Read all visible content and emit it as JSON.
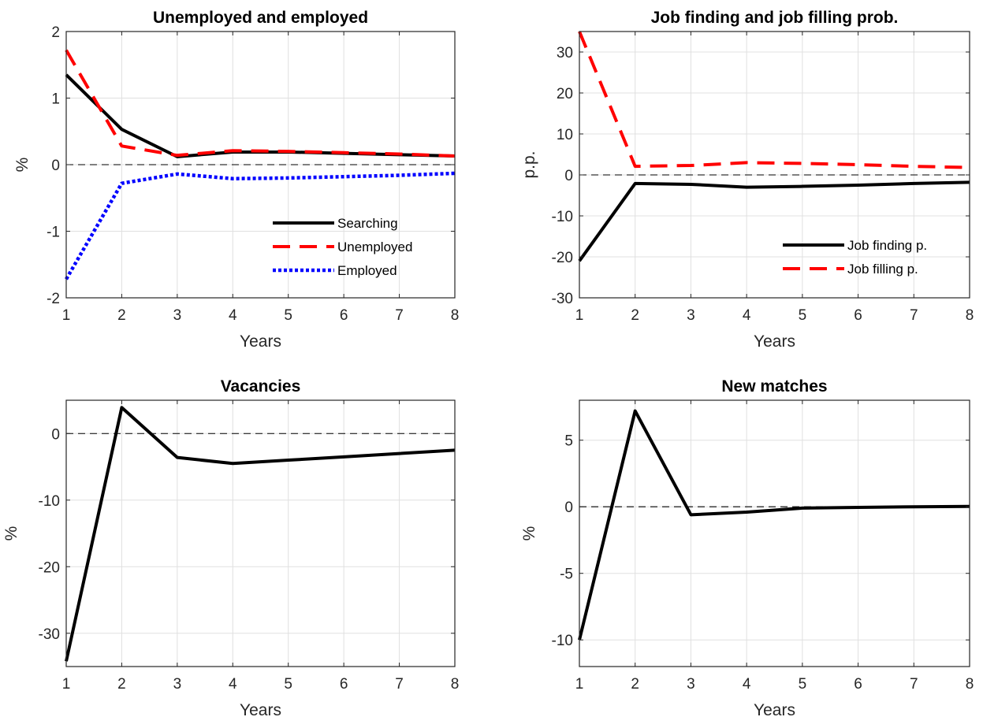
{
  "chart_data": [
    {
      "type": "line",
      "title": "Unemployed and employed",
      "xlabel": "Years",
      "ylabel": "%",
      "xlim": [
        1,
        8
      ],
      "ylim": [
        -2,
        2
      ],
      "xticks": [
        1,
        2,
        3,
        4,
        5,
        6,
        7,
        8
      ],
      "yticks": [
        -2,
        -1,
        0,
        1,
        2
      ],
      "grid": true,
      "zero_line": true,
      "legend": {
        "placement": "bottom-right"
      },
      "series": [
        {
          "name": "Searching",
          "color": "#000000",
          "style": "solid",
          "x": [
            1,
            2,
            3,
            4,
            5,
            6,
            7,
            8
          ],
          "y": [
            1.35,
            0.53,
            0.12,
            0.19,
            0.19,
            0.17,
            0.15,
            0.13
          ]
        },
        {
          "name": "Unemployed",
          "color": "#ff0000",
          "style": "dashed",
          "x": [
            1,
            2,
            3,
            4,
            5,
            6,
            7,
            8
          ],
          "y": [
            1.72,
            0.28,
            0.14,
            0.21,
            0.2,
            0.18,
            0.16,
            0.13
          ]
        },
        {
          "name": "Employed",
          "color": "#0000ff",
          "style": "dotted",
          "x": [
            1,
            2,
            3,
            4,
            5,
            6,
            7,
            8
          ],
          "y": [
            -1.72,
            -0.28,
            -0.14,
            -0.21,
            -0.2,
            -0.18,
            -0.16,
            -0.13
          ]
        }
      ]
    },
    {
      "type": "line",
      "title": "Job finding and job filling prob.",
      "xlabel": "Years",
      "ylabel": "p.p.",
      "xlim": [
        1,
        8
      ],
      "ylim": [
        -30,
        35
      ],
      "xticks": [
        1,
        2,
        3,
        4,
        5,
        6,
        7,
        8
      ],
      "yticks": [
        -30,
        -20,
        -10,
        0,
        10,
        20,
        30
      ],
      "grid": true,
      "zero_line": true,
      "legend": {
        "placement": "bottom-right"
      },
      "series": [
        {
          "name": "Job finding p.",
          "color": "#000000",
          "style": "solid",
          "x": [
            1,
            2,
            3,
            4,
            5,
            6,
            7,
            8
          ],
          "y": [
            -21,
            -2.1,
            -2.3,
            -3.0,
            -2.8,
            -2.5,
            -2.1,
            -1.8
          ]
        },
        {
          "name": "Job filling p.",
          "color": "#ff0000",
          "style": "dashed",
          "x": [
            1,
            2,
            3,
            4,
            5,
            6,
            7,
            8
          ],
          "y": [
            35,
            2.1,
            2.3,
            3.0,
            2.8,
            2.5,
            2.1,
            1.8
          ]
        }
      ]
    },
    {
      "type": "line",
      "title": "Vacancies",
      "xlabel": "Years",
      "ylabel": "%",
      "xlim": [
        1,
        8
      ],
      "ylim": [
        -35,
        5
      ],
      "xticks": [
        1,
        2,
        3,
        4,
        5,
        6,
        7,
        8
      ],
      "yticks": [
        -30,
        -20,
        -10,
        0
      ],
      "grid": true,
      "zero_line": true,
      "series": [
        {
          "color": "#000000",
          "style": "solid",
          "x": [
            1,
            2,
            3,
            4,
            5,
            6,
            7,
            8
          ],
          "y": [
            -34.2,
            3.9,
            -3.6,
            -4.5,
            -4.0,
            -3.5,
            -3.0,
            -2.5
          ]
        }
      ]
    },
    {
      "type": "line",
      "title": "New matches",
      "xlabel": "Years",
      "ylabel": "%",
      "xlim": [
        1,
        8
      ],
      "ylim": [
        -12,
        8
      ],
      "xticks": [
        1,
        2,
        3,
        4,
        5,
        6,
        7,
        8
      ],
      "yticks": [
        -10,
        -5,
        0,
        5
      ],
      "grid": true,
      "zero_line": true,
      "series": [
        {
          "color": "#000000",
          "style": "solid",
          "x": [
            1,
            2,
            3,
            4,
            5,
            6,
            7,
            8
          ],
          "y": [
            -10,
            7.2,
            -0.6,
            -0.4,
            -0.1,
            -0.05,
            0.0,
            0.03
          ]
        }
      ]
    }
  ]
}
